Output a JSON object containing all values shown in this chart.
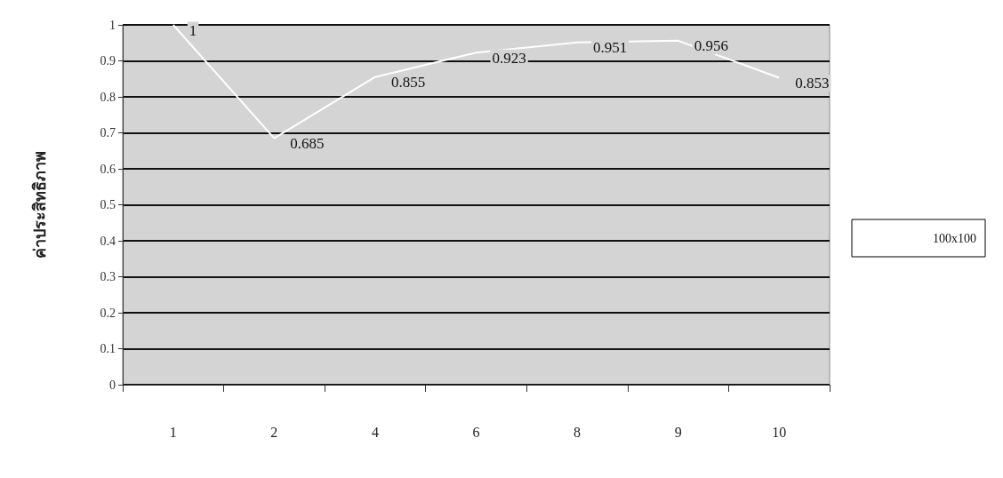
{
  "chart_data": {
    "type": "line",
    "ylabel": "ค่าประสิทธิภาพ",
    "categories": [
      "1",
      "2",
      "4",
      "6",
      "8",
      "9",
      "10"
    ],
    "series": [
      {
        "name": "100x100",
        "color": "#ffffff",
        "values": [
          1,
          0.685,
          0.855,
          0.923,
          0.951,
          0.956,
          0.853
        ]
      }
    ],
    "ylim": [
      0,
      1
    ],
    "yticks": [
      0,
      0.1,
      0.2,
      0.3,
      0.4,
      0.5,
      0.6,
      0.7,
      0.8,
      0.9,
      1
    ],
    "grid": "y",
    "legend": "right",
    "data_labels": true,
    "marker": "none"
  }
}
